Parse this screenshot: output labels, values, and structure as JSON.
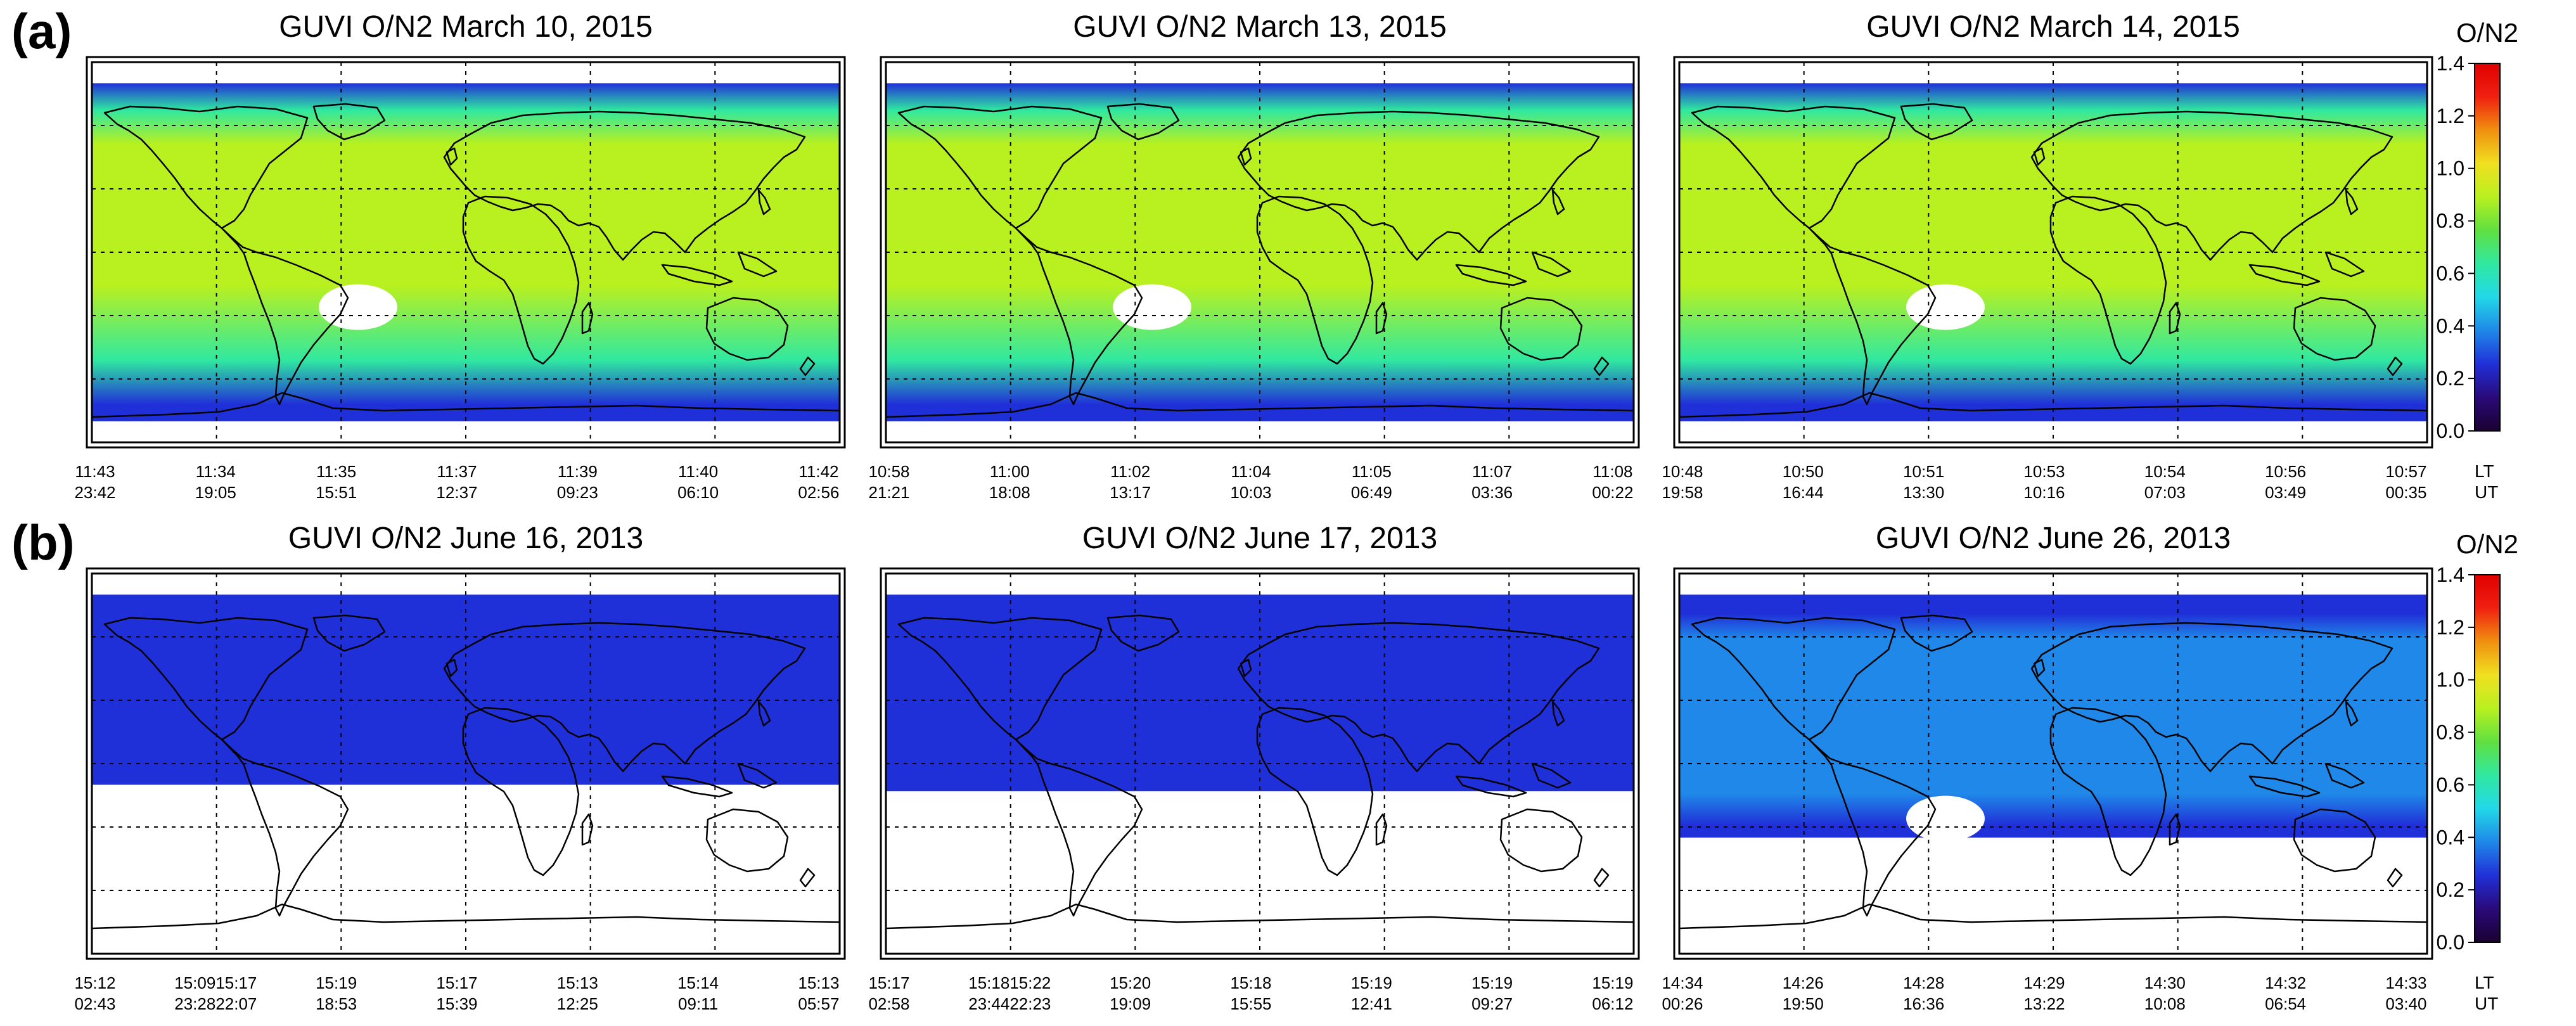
{
  "figure": {
    "rows": [
      {
        "label": "(a)",
        "colorbar_title": "O/N2",
        "panels": [
          {
            "title": "GUVI O/N2  March 10,  2015",
            "lt": [
              "11:43",
              "11:34",
              "11:35",
              "11:37",
              "11:39",
              "11:40",
              "11:42"
            ],
            "ut": [
              "23:42",
              "19:05",
              "15:51",
              "12:37",
              "09:23",
              "06:10",
              "02:56"
            ]
          },
          {
            "title": "GUVI O/N2  March 13,  2015",
            "lt": [
              "10:58",
              "11:00",
              "11:02",
              "11:04",
              "11:05",
              "11:07",
              "11:08"
            ],
            "ut": [
              "21:21",
              "18:08",
              "13:17",
              "10:03",
              "06:49",
              "03:36",
              "00:22"
            ]
          },
          {
            "title": "GUVI O/N2  March 14,  2015",
            "lt": [
              "10:48",
              "10:50",
              "10:51",
              "10:53",
              "10:54",
              "10:56",
              "10:57"
            ],
            "ut": [
              "19:58",
              "16:44",
              "13:30",
              "10:16",
              "07:03",
              "03:49",
              "00:35"
            ]
          }
        ]
      },
      {
        "label": "(b)",
        "colorbar_title": "O/N2",
        "panels": [
          {
            "title": "GUVI O/N2  June 16,  2013",
            "lt": [
              "15:12",
              "15:0915:17",
              "15:19",
              "15:17",
              "15:13",
              "15:14",
              "15:13"
            ],
            "ut": [
              "02:43",
              "23:2822:07",
              "18:53",
              "15:39",
              "12:25",
              "09:11",
              "05:57"
            ]
          },
          {
            "title": "GUVI O/N2  June 17,  2013",
            "lt": [
              "15:17",
              "15:1815:22",
              "15:20",
              "15:18",
              "15:19",
              "15:19",
              "15:19"
            ],
            "ut": [
              "02:58",
              "23:4422:23",
              "19:09",
              "15:55",
              "12:41",
              "09:27",
              "06:12"
            ]
          },
          {
            "title": "GUVI O/N2  June 26,  2013",
            "lt": [
              "14:34",
              "14:26",
              "14:28",
              "14:29",
              "14:30",
              "14:32",
              "14:33"
            ],
            "ut": [
              "00:26",
              "19:50",
              "16:36",
              "13:22",
              "10:08",
              "06:54",
              "03:40"
            ]
          }
        ]
      }
    ],
    "lt_label": "LT",
    "ut_label": "UT"
  },
  "chart_data": {
    "type": "heatmap",
    "description_variable": "O/N2",
    "colorbar": {
      "label": "O/N2",
      "range": [
        0.0,
        1.4
      ],
      "ticks": [
        "0.0",
        "0.2",
        "0.4",
        "0.6",
        "0.8",
        "1.0",
        "1.2",
        "1.4"
      ],
      "colormap": [
        "#1a0030",
        "#2a0a7a",
        "#2030d8",
        "#1f88e8",
        "#22d8e8",
        "#30e8a0",
        "#60e040",
        "#b8f020",
        "#f0e020",
        "#f09010",
        "#f02010",
        "#e00000"
      ]
    },
    "panels": [
      {
        "title": "GUVI O/N2  March 10,  2015",
        "data_top_lat": 80,
        "data_bottom_lat": -80,
        "typical_value": 0.95,
        "southern_value": 0.65,
        "polar_value": 0.3
      },
      {
        "title": "GUVI O/N2  March 13,  2015",
        "data_top_lat": 80,
        "data_bottom_lat": -80,
        "typical_value": 0.9,
        "southern_value": 0.6,
        "polar_value": 0.3
      },
      {
        "title": "GUVI O/N2  March 14,  2015",
        "data_top_lat": 80,
        "data_bottom_lat": -80,
        "typical_value": 0.92,
        "southern_value": 0.6,
        "polar_value": 0.3
      },
      {
        "title": "GUVI O/N2  June 16,  2013",
        "data_top_lat": 80,
        "data_bottom_lat": -10,
        "typical_value": 0.3,
        "southern_value": 0.3,
        "polar_value": 0.2
      },
      {
        "title": "GUVI O/N2  June 17,  2013",
        "data_top_lat": 80,
        "data_bottom_lat": -13,
        "typical_value": 0.3,
        "southern_value": 0.3,
        "polar_value": 0.2
      },
      {
        "title": "GUVI O/N2  June 26,  2013",
        "data_top_lat": 80,
        "data_bottom_lat": -35,
        "typical_value": 0.35,
        "southern_value": 0.4,
        "polar_value": 0.2
      }
    ]
  }
}
